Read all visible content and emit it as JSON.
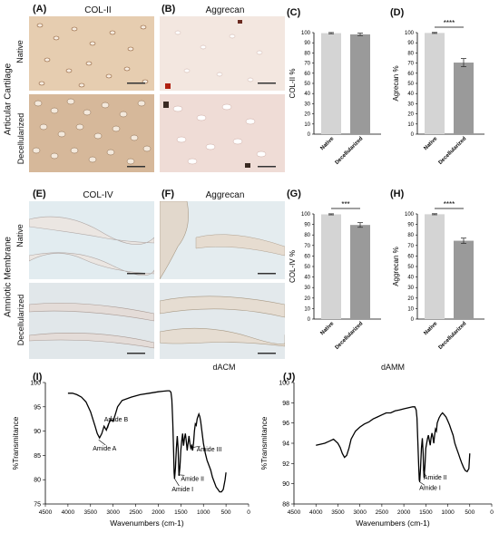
{
  "panels": {
    "a": {
      "letter": "(A)",
      "title": "COL-II"
    },
    "b": {
      "letter": "(B)",
      "title": "Aggrecan"
    },
    "c": {
      "letter": "(C)"
    },
    "d": {
      "letter": "(D)"
    },
    "e": {
      "letter": "(E)",
      "title": "COL-IV"
    },
    "f": {
      "letter": "(F)",
      "title": "Aggrecan"
    },
    "g": {
      "letter": "(G)"
    },
    "h": {
      "letter": "(H)"
    },
    "i": {
      "letter": "(I)"
    },
    "j": {
      "letter": "(J)"
    }
  },
  "side_labels": {
    "top": "Articular Cartilage",
    "bottom": "Amniotic Membrane",
    "native": "Native",
    "decell": "Decellularized"
  },
  "dataset_labels": {
    "dacm": "dACM",
    "damm": "dAMM"
  },
  "colors": {
    "native_bar": "#d4d4d4",
    "decell_bar": "#9a9a9a",
    "ihc_top": "#e4cdb3",
    "ihc_top_b": "#f2e4dc",
    "ihc_bottom": "#dde6ea",
    "spectrum": "#000000"
  },
  "chart_data": [
    {
      "id": "C",
      "type": "bar",
      "ylabel": "COL-II %",
      "categories": [
        "Native",
        "Decellularized"
      ],
      "values": [
        99.5,
        98.3
      ],
      "errors": [
        0.6,
        1.2
      ],
      "ylim": [
        0,
        100
      ],
      "yticks": [
        0,
        10,
        20,
        30,
        40,
        50,
        60,
        70,
        80,
        90,
        100
      ],
      "significance": ""
    },
    {
      "id": "D",
      "type": "bar",
      "ylabel": "Agrecan %",
      "categories": [
        "Native",
        "Decellularized"
      ],
      "values": [
        99.7,
        70.5
      ],
      "errors": [
        0.5,
        4.0
      ],
      "ylim": [
        0,
        100
      ],
      "yticks": [
        0,
        10,
        20,
        30,
        40,
        50,
        60,
        70,
        80,
        90,
        100
      ],
      "significance": "****"
    },
    {
      "id": "G",
      "type": "bar",
      "ylabel": "COL-IV %",
      "categories": [
        "Native",
        "Decellularized"
      ],
      "values": [
        99.6,
        89.5
      ],
      "errors": [
        0.5,
        2.2
      ],
      "ylim": [
        0,
        100
      ],
      "yticks": [
        0,
        10,
        20,
        30,
        40,
        50,
        60,
        70,
        80,
        90,
        100
      ],
      "significance": "***"
    },
    {
      "id": "H",
      "type": "bar",
      "ylabel": "Aggrecan %",
      "categories": [
        "Native",
        "Decellularized"
      ],
      "values": [
        99.7,
        74.5
      ],
      "errors": [
        0.5,
        2.5
      ],
      "ylim": [
        0,
        100
      ],
      "yticks": [
        0,
        10,
        20,
        30,
        40,
        50,
        60,
        70,
        80,
        90,
        100
      ],
      "significance": "****"
    },
    {
      "id": "I",
      "type": "line",
      "xlabel": "Wavenumbers (cm-1)",
      "ylabel": "%Transmitance",
      "xlim": [
        4500,
        0
      ],
      "ylim": [
        75,
        100
      ],
      "xticks": [
        4500,
        4000,
        3500,
        3000,
        2500,
        2000,
        1500,
        1000,
        500,
        0
      ],
      "yticks": [
        75,
        80,
        85,
        90,
        95,
        100
      ],
      "x": [
        4000,
        3900,
        3800,
        3700,
        3600,
        3500,
        3450,
        3400,
        3350,
        3300,
        3250,
        3200,
        3150,
        3100,
        3050,
        3000,
        2950,
        2900,
        2800,
        2600,
        2400,
        2200,
        2000,
        1900,
        1800,
        1750,
        1720,
        1700,
        1680,
        1660,
        1650,
        1640,
        1620,
        1600,
        1580,
        1560,
        1550,
        1540,
        1520,
        1500,
        1480,
        1460,
        1450,
        1440,
        1420,
        1400,
        1380,
        1360,
        1340,
        1320,
        1300,
        1280,
        1260,
        1240,
        1220,
        1200,
        1180,
        1160,
        1140,
        1120,
        1100,
        1080,
        1060,
        1040,
        1020,
        1000,
        960,
        920,
        880,
        840,
        800,
        760,
        720,
        680,
        640,
        600,
        560,
        520,
        500
      ],
      "y": [
        97.8,
        97.8,
        97.5,
        97.0,
        96.0,
        94.0,
        92.5,
        91.0,
        89.5,
        88.6,
        89.5,
        91.0,
        90.2,
        91.5,
        92.4,
        92.0,
        93.5,
        95.0,
        96.3,
        97.0,
        97.5,
        97.8,
        98.1,
        98.2,
        98.3,
        98.3,
        98.0,
        96.5,
        92.0,
        85.5,
        81.5,
        80.2,
        82.5,
        86.5,
        89.0,
        86.5,
        83.5,
        80.8,
        82.5,
        86.0,
        88.0,
        89.5,
        88.0,
        87.0,
        88.5,
        89.5,
        88.0,
        86.0,
        87.5,
        89.0,
        87.5,
        86.5,
        87.0,
        86.0,
        87.5,
        90.0,
        91.5,
        91.2,
        92.5,
        93.0,
        93.5,
        93.0,
        92.0,
        90.5,
        89.0,
        87.5,
        85.5,
        84.0,
        83.0,
        82.0,
        80.5,
        79.5,
        78.5,
        78.0,
        77.5,
        77.5,
        78.0,
        80.0,
        81.5
      ],
      "annotations": [
        "Amide A",
        "Amide B",
        "Amide III",
        "Amide II",
        "Amide I"
      ]
    },
    {
      "id": "J",
      "type": "line",
      "xlabel": "Wavenumbers (cm-1)",
      "ylabel": "%Transmitance",
      "xlim": [
        4500,
        0
      ],
      "ylim": [
        88,
        100
      ],
      "xticks": [
        4500,
        4000,
        3500,
        3000,
        2500,
        2000,
        1500,
        1000,
        500,
        0
      ],
      "yticks": [
        88,
        90,
        92,
        94,
        96,
        98,
        100
      ],
      "x": [
        4000,
        3900,
        3800,
        3700,
        3600,
        3500,
        3450,
        3400,
        3350,
        3300,
        3250,
        3200,
        3100,
        3000,
        2900,
        2800,
        2700,
        2600,
        2500,
        2400,
        2300,
        2200,
        2100,
        2000,
        1900,
        1800,
        1750,
        1720,
        1700,
        1680,
        1660,
        1650,
        1640,
        1620,
        1600,
        1580,
        1560,
        1550,
        1540,
        1520,
        1500,
        1480,
        1460,
        1440,
        1420,
        1400,
        1380,
        1360,
        1340,
        1320,
        1300,
        1280,
        1260,
        1240,
        1200,
        1160,
        1120,
        1080,
        1040,
        1000,
        960,
        920,
        880,
        840,
        800,
        760,
        720,
        680,
        640,
        600,
        560,
        520,
        500
      ],
      "y": [
        93.8,
        93.9,
        94.0,
        94.2,
        94.4,
        94.0,
        93.6,
        93.0,
        92.6,
        92.8,
        93.5,
        94.4,
        95.2,
        95.6,
        95.9,
        96.1,
        96.4,
        96.6,
        96.8,
        97.0,
        97.0,
        97.2,
        97.3,
        97.4,
        97.5,
        97.6,
        97.6,
        97.3,
        96.5,
        94.0,
        91.5,
        90.4,
        90.2,
        91.5,
        93.5,
        94.5,
        93.0,
        91.5,
        90.6,
        91.8,
        93.5,
        94.0,
        94.5,
        94.8,
        94.3,
        93.8,
        94.5,
        95.0,
        94.6,
        94.0,
        94.8,
        95.4,
        95.2,
        96.0,
        96.5,
        96.8,
        97.0,
        96.8,
        96.6,
        96.2,
        95.8,
        95.3,
        94.8,
        94.0,
        93.5,
        93.0,
        92.5,
        92.0,
        91.6,
        91.3,
        91.2,
        91.5,
        93.0
      ],
      "annotations": [
        "Amide II",
        "Amide I"
      ]
    }
  ]
}
